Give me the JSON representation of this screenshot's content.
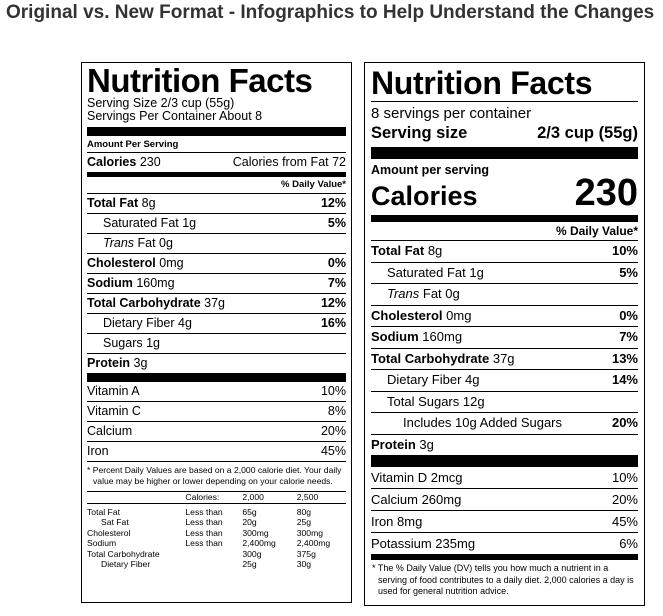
{
  "page_title": "Original vs. New Format - Infographics to Help Understand the Changes",
  "original": {
    "title": "Nutrition Facts",
    "serving_size": "Serving Size 2/3 cup (55g)",
    "servings_per_container": "Servings Per Container About 8",
    "amount_per_serving": "Amount Per Serving",
    "calories_label": "Calories",
    "calories_value": "230",
    "calories_from_fat": "Calories from Fat 72",
    "dv_header": "% Daily Value*",
    "nutrients": [
      {
        "name": "Total Fat",
        "amount": "8g",
        "dv": "12%"
      },
      {
        "name": "Saturated Fat 1g",
        "dv": "5%"
      },
      {
        "name_italic": "Trans",
        "name_rest": " Fat 0g"
      },
      {
        "name": "Cholesterol",
        "amount": "0mg",
        "dv": "0%"
      },
      {
        "name": "Sodium",
        "amount": "160mg",
        "dv": "7%"
      },
      {
        "name": "Total Carbohydrate",
        "amount": "37g",
        "dv": "12%"
      },
      {
        "name": "Dietary Fiber 4g",
        "dv": "16%"
      },
      {
        "name": "Sugars 1g"
      },
      {
        "name": "Protein",
        "amount": "3g"
      }
    ],
    "vitamins": [
      {
        "name": "Vitamin A",
        "dv": "10%"
      },
      {
        "name": "Vitamin C",
        "dv": "8%"
      },
      {
        "name": "Calcium",
        "dv": "20%"
      },
      {
        "name": "Iron",
        "dv": "45%"
      }
    ],
    "footnote": "* Percent Daily Values are based on a 2,000 calorie diet. Your daily value may be higher or lower depending on your calorie needs.",
    "reference_table": {
      "header": [
        "",
        "Calories:",
        "2,000",
        "2,500"
      ],
      "rows": [
        [
          "Total Fat",
          "Less than",
          "65g",
          "80g"
        ],
        [
          "Sat Fat",
          "Less than",
          "20g",
          "25g"
        ],
        [
          "Cholesterol",
          "Less than",
          "300mg",
          "300mg"
        ],
        [
          "Sodium",
          "Less than",
          "2,400mg",
          "2,400mg"
        ],
        [
          "Total Carbohydrate",
          "",
          "300g",
          "375g"
        ],
        [
          "Dietary Fiber",
          "",
          "25g",
          "30g"
        ]
      ]
    }
  },
  "new": {
    "title": "Nutrition Facts",
    "servings_per_container": "8 servings per container",
    "serving_size_label": "Serving size",
    "serving_size_value": "2/3 cup (55g)",
    "amount_per_serving": "Amount per serving",
    "calories_label": "Calories",
    "calories_value": "230",
    "dv_header": "% Daily Value*",
    "nutrients": [
      {
        "name": "Total Fat",
        "amount": "8g",
        "dv": "10%"
      },
      {
        "name": "Saturated Fat 1g",
        "dv": "5%"
      },
      {
        "name_italic": "Trans",
        "name_rest": " Fat 0g"
      },
      {
        "name": "Cholesterol",
        "amount": "0mg",
        "dv": "0%"
      },
      {
        "name": "Sodium",
        "amount": "160mg",
        "dv": "7%"
      },
      {
        "name": "Total Carbohydrate",
        "amount": "37g",
        "dv": "13%"
      },
      {
        "name": "Dietary Fiber 4g",
        "dv": "14%"
      },
      {
        "name": "Total Sugars 12g"
      },
      {
        "name": "Includes 10g Added Sugars",
        "dv": "20%"
      },
      {
        "name": "Protein",
        "amount": "3g"
      }
    ],
    "vitamins": [
      {
        "name": "Vitamin D 2mcg",
        "dv": "10%"
      },
      {
        "name": "Calcium 260mg",
        "dv": "20%"
      },
      {
        "name": "Iron 8mg",
        "dv": "45%"
      },
      {
        "name": "Potassium 235mg",
        "dv": "6%"
      }
    ],
    "footnote": "* The % Daily Value (DV) tells you how much a nutrient in a serving of food contributes to a daily diet. 2,000 calories a day is used for general nutrition advice."
  }
}
